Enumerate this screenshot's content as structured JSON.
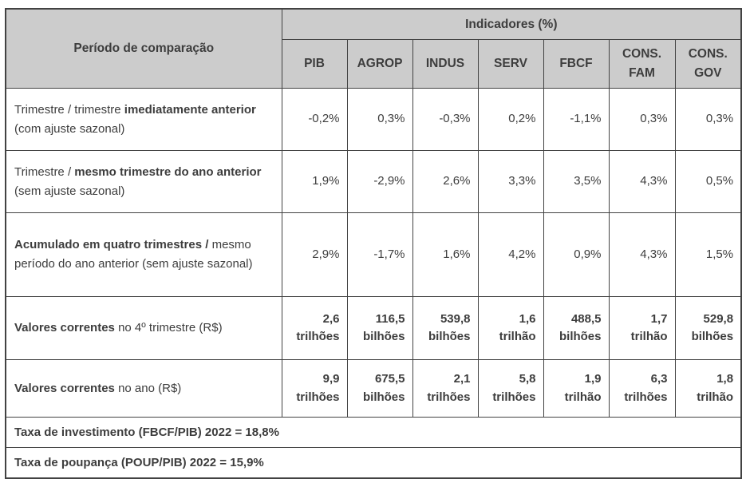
{
  "table": {
    "corner_header": "Período de comparação",
    "group_header": "Indicadores (%)",
    "columns": [
      "PIB",
      "AGROP",
      "INDUS",
      "SERV",
      "FBCF",
      "CONS. FAM",
      "CONS. GOV"
    ],
    "rows": [
      {
        "label_parts": [
          {
            "text": "Trimestre / trimestre ",
            "bold": false
          },
          {
            "text": "imediatamente anterior",
            "bold": true
          },
          {
            "text": " (com ajuste sazonal)",
            "bold": false
          }
        ],
        "values": [
          "-0,2%",
          "0,3%",
          "-0,3%",
          "0,2%",
          "-1,1%",
          "0,3%",
          "0,3%"
        ],
        "values_bold": false
      },
      {
        "label_parts": [
          {
            "text": "Trimestre / ",
            "bold": false
          },
          {
            "text": "mesmo trimestre do ano anterior",
            "bold": true
          },
          {
            "text": " (sem ajuste sazonal)",
            "bold": false
          }
        ],
        "values": [
          "1,9%",
          "-2,9%",
          "2,6%",
          "3,3%",
          "3,5%",
          "4,3%",
          "0,5%"
        ],
        "values_bold": false
      },
      {
        "label_parts": [
          {
            "text": "Acumulado em quatro trimestres /",
            "bold": true
          },
          {
            "text": " mesmo período do ano anterior (sem ajuste sazonal)",
            "bold": false
          }
        ],
        "values": [
          "2,9%",
          "-1,7%",
          "1,6%",
          "4,2%",
          "0,9%",
          "4,3%",
          "1,5%"
        ],
        "values_bold": false
      },
      {
        "label_parts": [
          {
            "text": "Valores correntes",
            "bold": true
          },
          {
            "text": " no 4º trimestre (R$)",
            "bold": false
          }
        ],
        "values": [
          "2,6 trilhões",
          "116,5 bilhões",
          "539,8 bilhões",
          "1,6 trilhão",
          "488,5 bilhões",
          "1,7 trilhão",
          "529,8 bilhões"
        ],
        "values_bold": true
      },
      {
        "label_parts": [
          {
            "text": "Valores correntes",
            "bold": true
          },
          {
            "text": " no ano (R$)",
            "bold": false
          }
        ],
        "values": [
          "9,9 trilhões",
          "675,5 bilhões",
          "2,1 trilhões",
          "5,8 trilhões",
          "1,9 trilhão",
          "6,3 trilhões",
          "1,8 trilhão"
        ],
        "values_bold": true
      }
    ],
    "footers": [
      "Taxa de investimento (FBCF/PIB) 2022 = 18,8%",
      "Taxa de poupança (POUP/PIB) 2022 = 15,9%"
    ]
  },
  "colors": {
    "header_bg": "#cccccc",
    "border": "#424242",
    "text": "#3d3d3d",
    "body_bg": "#ffffff"
  }
}
